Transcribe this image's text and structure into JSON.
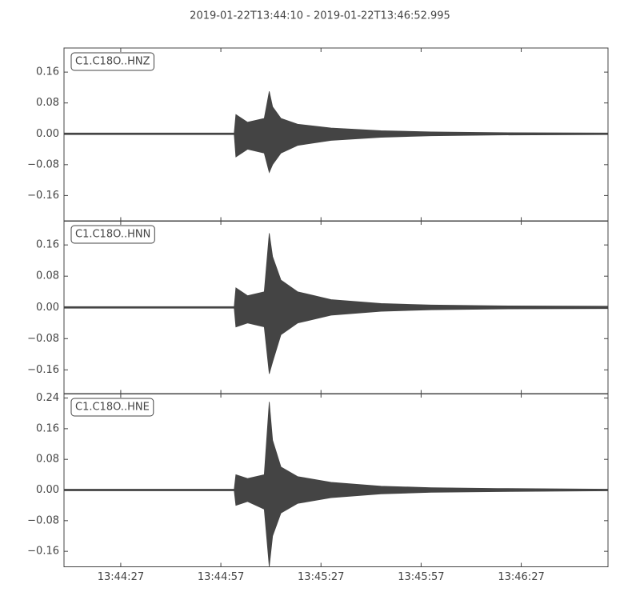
{
  "chart_data": [
    {
      "type": "area",
      "title": "2019-01-22T13:44:10  -  2019-01-22T13:46:52.995",
      "label": "C1.C18O..HNZ",
      "color": "#444444",
      "x": [
        "13:44:10",
        "13:45:01",
        "13:45:01.5",
        "13:45:05",
        "13:45:10",
        "13:45:11.5",
        "13:45:12.5",
        "13:45:15",
        "13:45:20",
        "13:45:30",
        "13:45:45",
        "13:46:00",
        "13:46:20",
        "13:46:52.995"
      ],
      "ymax": [
        0.002,
        0.002,
        0.05,
        0.03,
        0.04,
        0.11,
        0.07,
        0.04,
        0.025,
        0.015,
        0.008,
        0.005,
        0.003,
        0.002
      ],
      "ymin": [
        -0.002,
        -0.002,
        -0.06,
        -0.04,
        -0.05,
        -0.1,
        -0.08,
        -0.05,
        -0.03,
        -0.017,
        -0.009,
        -0.005,
        -0.003,
        -0.002
      ],
      "xlim": [
        "13:44:10",
        "13:46:52.995"
      ],
      "ylim": [
        -0.2266,
        0.2225
      ],
      "yticks": [
        {
          "value": -0.16,
          "label": "−0.16"
        },
        {
          "value": -0.08,
          "label": "−0.08"
        },
        {
          "value": 0,
          "label": "0.00"
        },
        {
          "value": 0.08,
          "label": "0.08"
        },
        {
          "value": 0.16,
          "label": "0.16"
        }
      ]
    },
    {
      "type": "area",
      "label": "C1.C18O..HNN",
      "color": "#444444",
      "x": [
        "13:44:10",
        "13:45:01",
        "13:45:01.5",
        "13:45:05",
        "13:45:10",
        "13:45:11.5",
        "13:45:12.5",
        "13:45:15",
        "13:45:20",
        "13:45:30",
        "13:45:45",
        "13:46:00",
        "13:46:20",
        "13:46:52.995"
      ],
      "ymax": [
        0.002,
        0.002,
        0.05,
        0.03,
        0.04,
        0.19,
        0.13,
        0.07,
        0.04,
        0.02,
        0.01,
        0.006,
        0.004,
        0.003
      ],
      "ymin": [
        -0.002,
        -0.002,
        -0.05,
        -0.04,
        -0.05,
        -0.17,
        -0.14,
        -0.07,
        -0.04,
        -0.02,
        -0.01,
        -0.006,
        -0.004,
        -0.003
      ],
      "xlim": [
        "13:44:10",
        "13:46:52.995"
      ],
      "ylim": [
        -0.2218,
        0.2218
      ],
      "yticks": [
        {
          "value": -0.16,
          "label": "−0.16"
        },
        {
          "value": -0.08,
          "label": "−0.08"
        },
        {
          "value": 0,
          "label": "0.00"
        },
        {
          "value": 0.08,
          "label": "0.08"
        },
        {
          "value": 0.16,
          "label": "0.16"
        }
      ]
    },
    {
      "type": "area",
      "label": "C1.C18O..HNE",
      "color": "#444444",
      "x": [
        "13:44:10",
        "13:45:01",
        "13:45:01.5",
        "13:45:05",
        "13:45:10",
        "13:45:11.5",
        "13:45:12.5",
        "13:45:15",
        "13:45:20",
        "13:45:30",
        "13:45:45",
        "13:46:00",
        "13:46:20",
        "13:46:52.995"
      ],
      "ymax": [
        0.002,
        0.002,
        0.04,
        0.03,
        0.04,
        0.23,
        0.13,
        0.06,
        0.035,
        0.02,
        0.01,
        0.006,
        0.004,
        0.002
      ],
      "ymin": [
        -0.002,
        -0.002,
        -0.04,
        -0.03,
        -0.05,
        -0.2,
        -0.12,
        -0.06,
        -0.035,
        -0.02,
        -0.01,
        -0.006,
        -0.004,
        -0.002
      ],
      "xlim": [
        "13:44:10",
        "13:46:52.995"
      ],
      "ylim": [
        -0.2004,
        0.2516
      ],
      "yticks": [
        {
          "value": -0.16,
          "label": "−0.16"
        },
        {
          "value": -0.08,
          "label": "−0.08"
        },
        {
          "value": 0,
          "label": "0.00"
        },
        {
          "value": 0.08,
          "label": "0.08"
        },
        {
          "value": 0.16,
          "label": "0.16"
        },
        {
          "value": 0.24,
          "label": "0.24"
        }
      ],
      "xticks": [
        "13:44:27",
        "13:44:57",
        "13:45:27",
        "13:45:57",
        "13:46:27"
      ]
    }
  ]
}
